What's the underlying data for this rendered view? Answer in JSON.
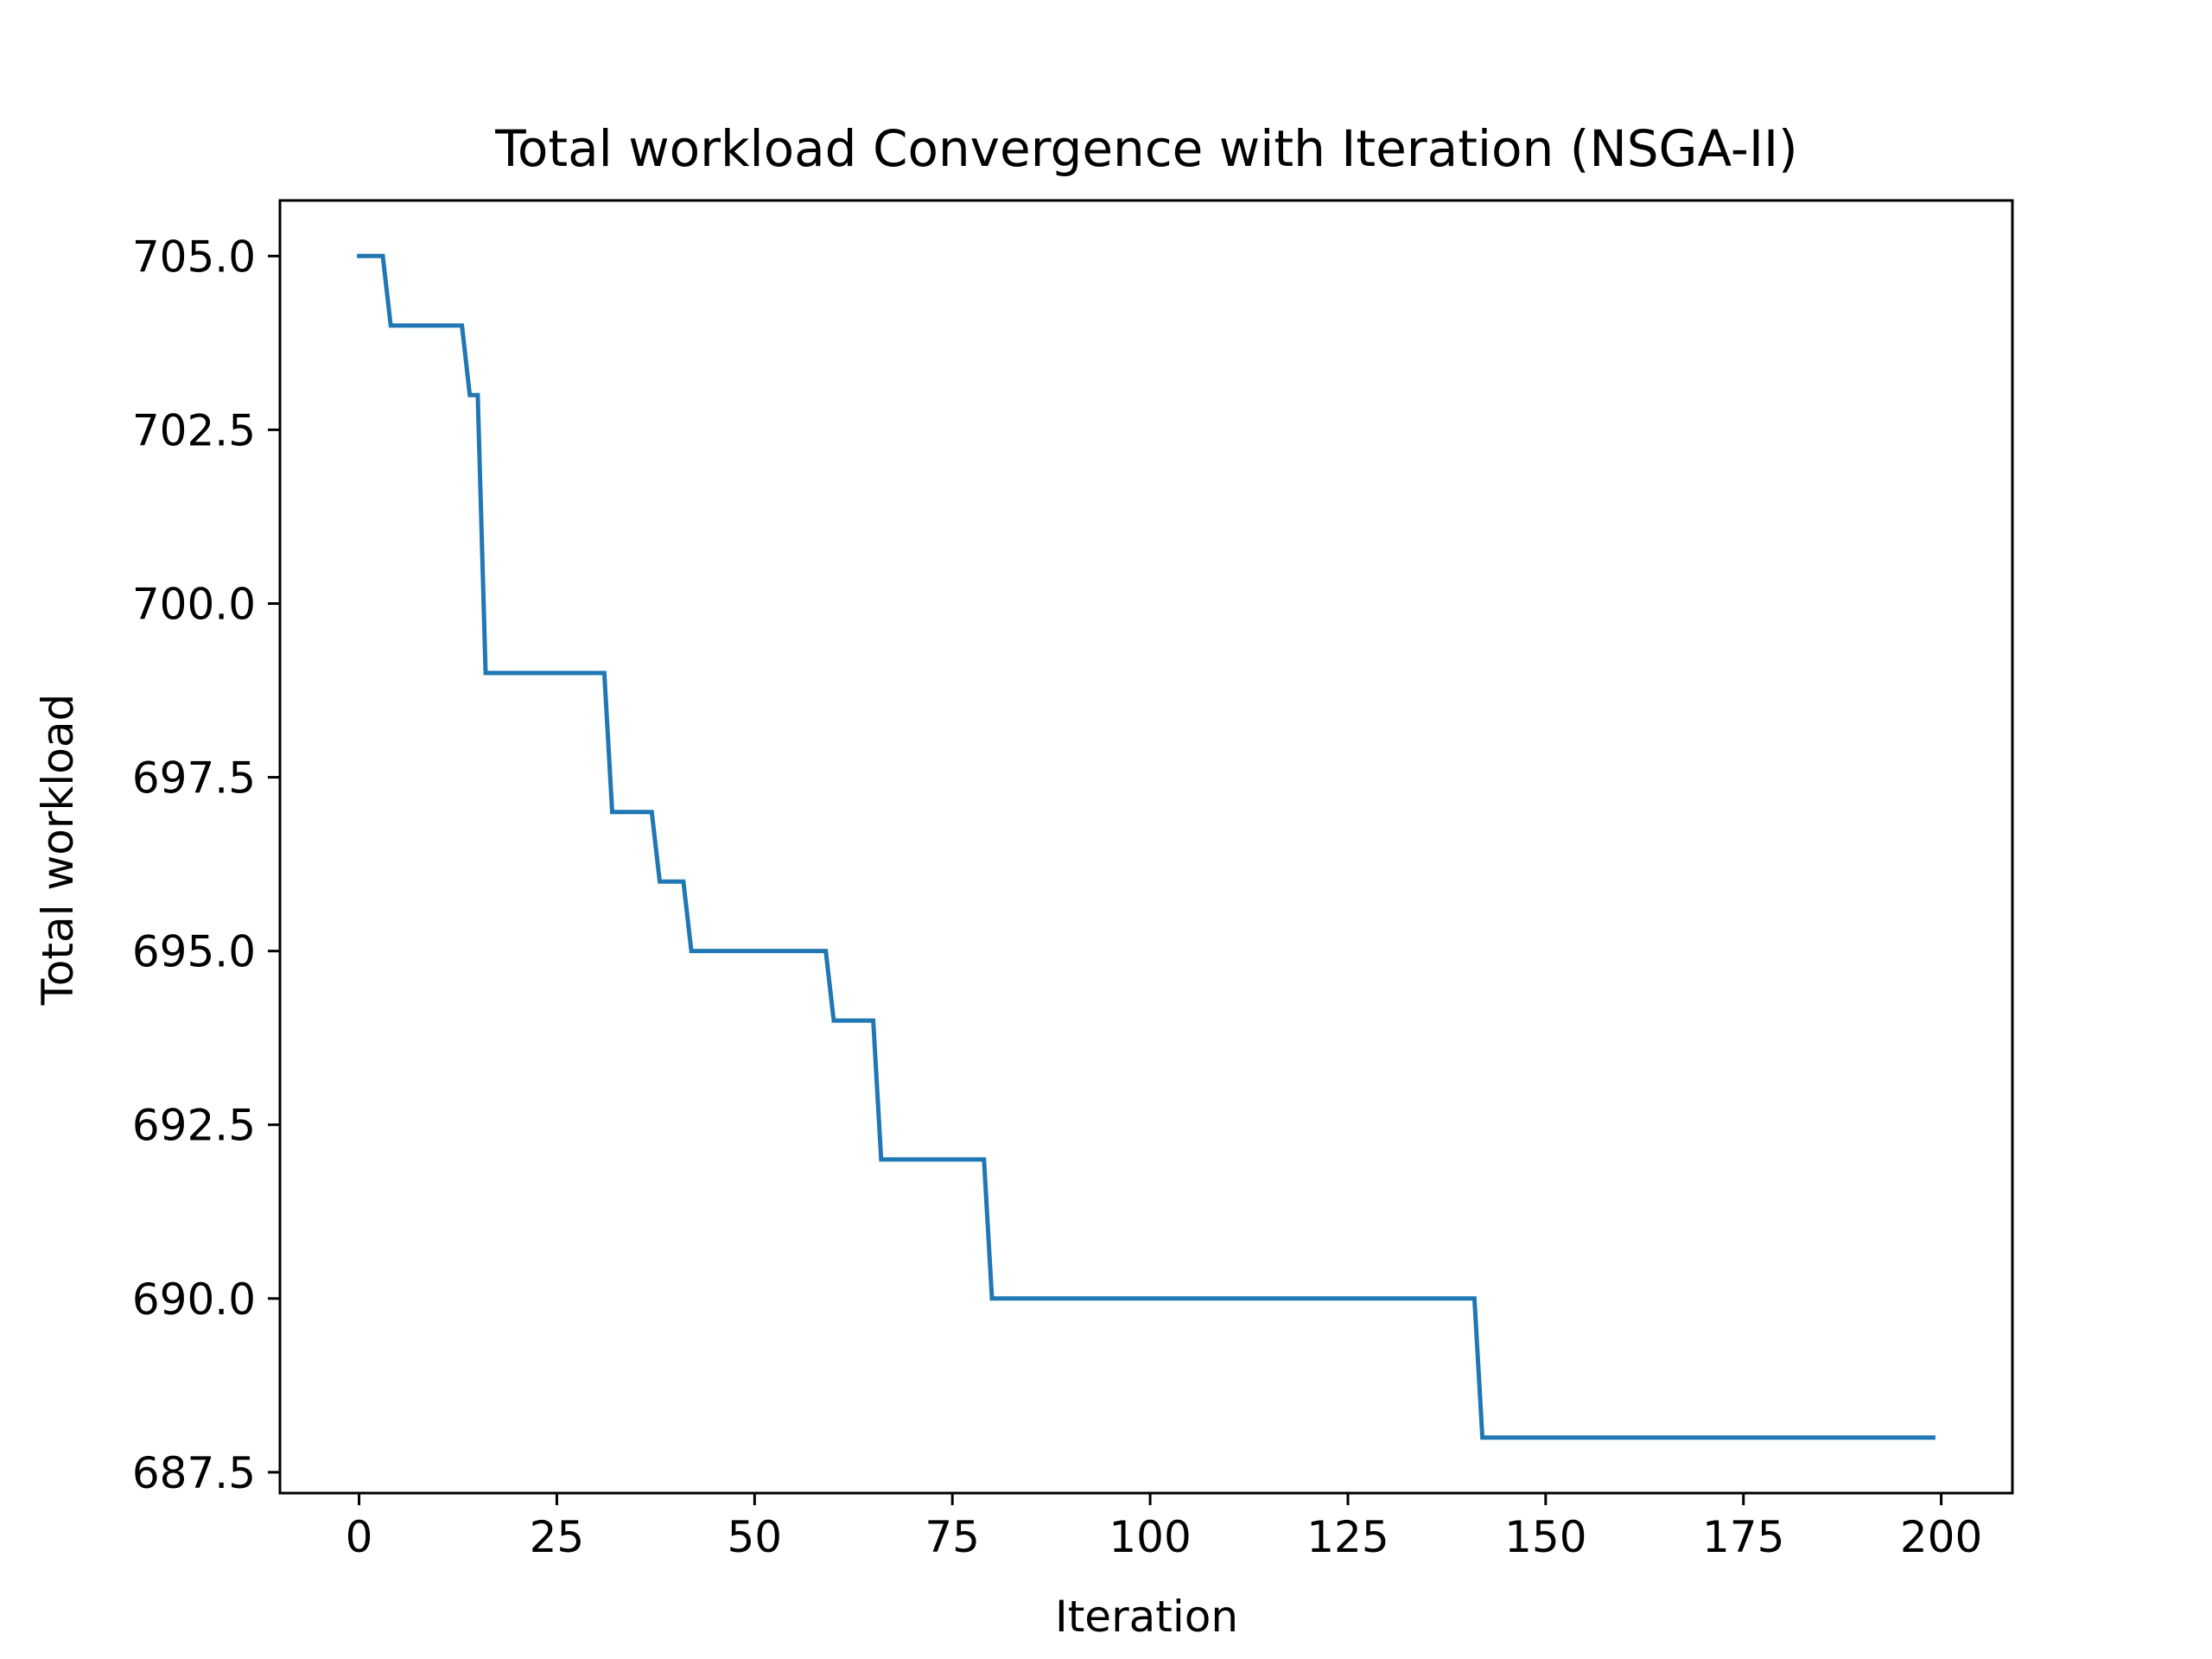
{
  "chart_data": {
    "type": "line",
    "title": "Total workload Convergence with Iteration (NSGA-II)",
    "xlabel": "Iteration",
    "ylabel": "Total workload",
    "xlim": [
      -10,
      209
    ],
    "ylim": [
      687.2,
      705.8
    ],
    "xticks": [
      0,
      25,
      50,
      75,
      100,
      125,
      150,
      175,
      200
    ],
    "xtick_labels": [
      "0",
      "25",
      "50",
      "75",
      "100",
      "125",
      "150",
      "175",
      "200"
    ],
    "yticks": [
      687.5,
      690.0,
      692.5,
      695.0,
      697.5,
      700.0,
      702.5,
      705.0
    ],
    "ytick_labels": [
      "687.5",
      "690.0",
      "692.5",
      "695.0",
      "697.5",
      "700.0",
      "702.5",
      "705.0"
    ],
    "grid": false,
    "legend": "none",
    "series": [
      {
        "color": "#1f77b4",
        "points": [
          [
            0,
            705
          ],
          [
            3,
            705
          ],
          [
            4,
            704
          ],
          [
            13,
            704
          ],
          [
            14,
            703
          ],
          [
            15,
            703
          ],
          [
            16,
            699
          ],
          [
            31,
            699
          ],
          [
            32,
            697
          ],
          [
            37,
            697
          ],
          [
            38,
            696
          ],
          [
            41,
            696
          ],
          [
            42,
            695
          ],
          [
            59,
            695
          ],
          [
            60,
            694
          ],
          [
            65,
            694
          ],
          [
            66,
            692
          ],
          [
            79,
            692
          ],
          [
            80,
            690
          ],
          [
            141,
            690
          ],
          [
            142,
            688
          ],
          [
            199,
            688
          ]
        ]
      }
    ]
  }
}
